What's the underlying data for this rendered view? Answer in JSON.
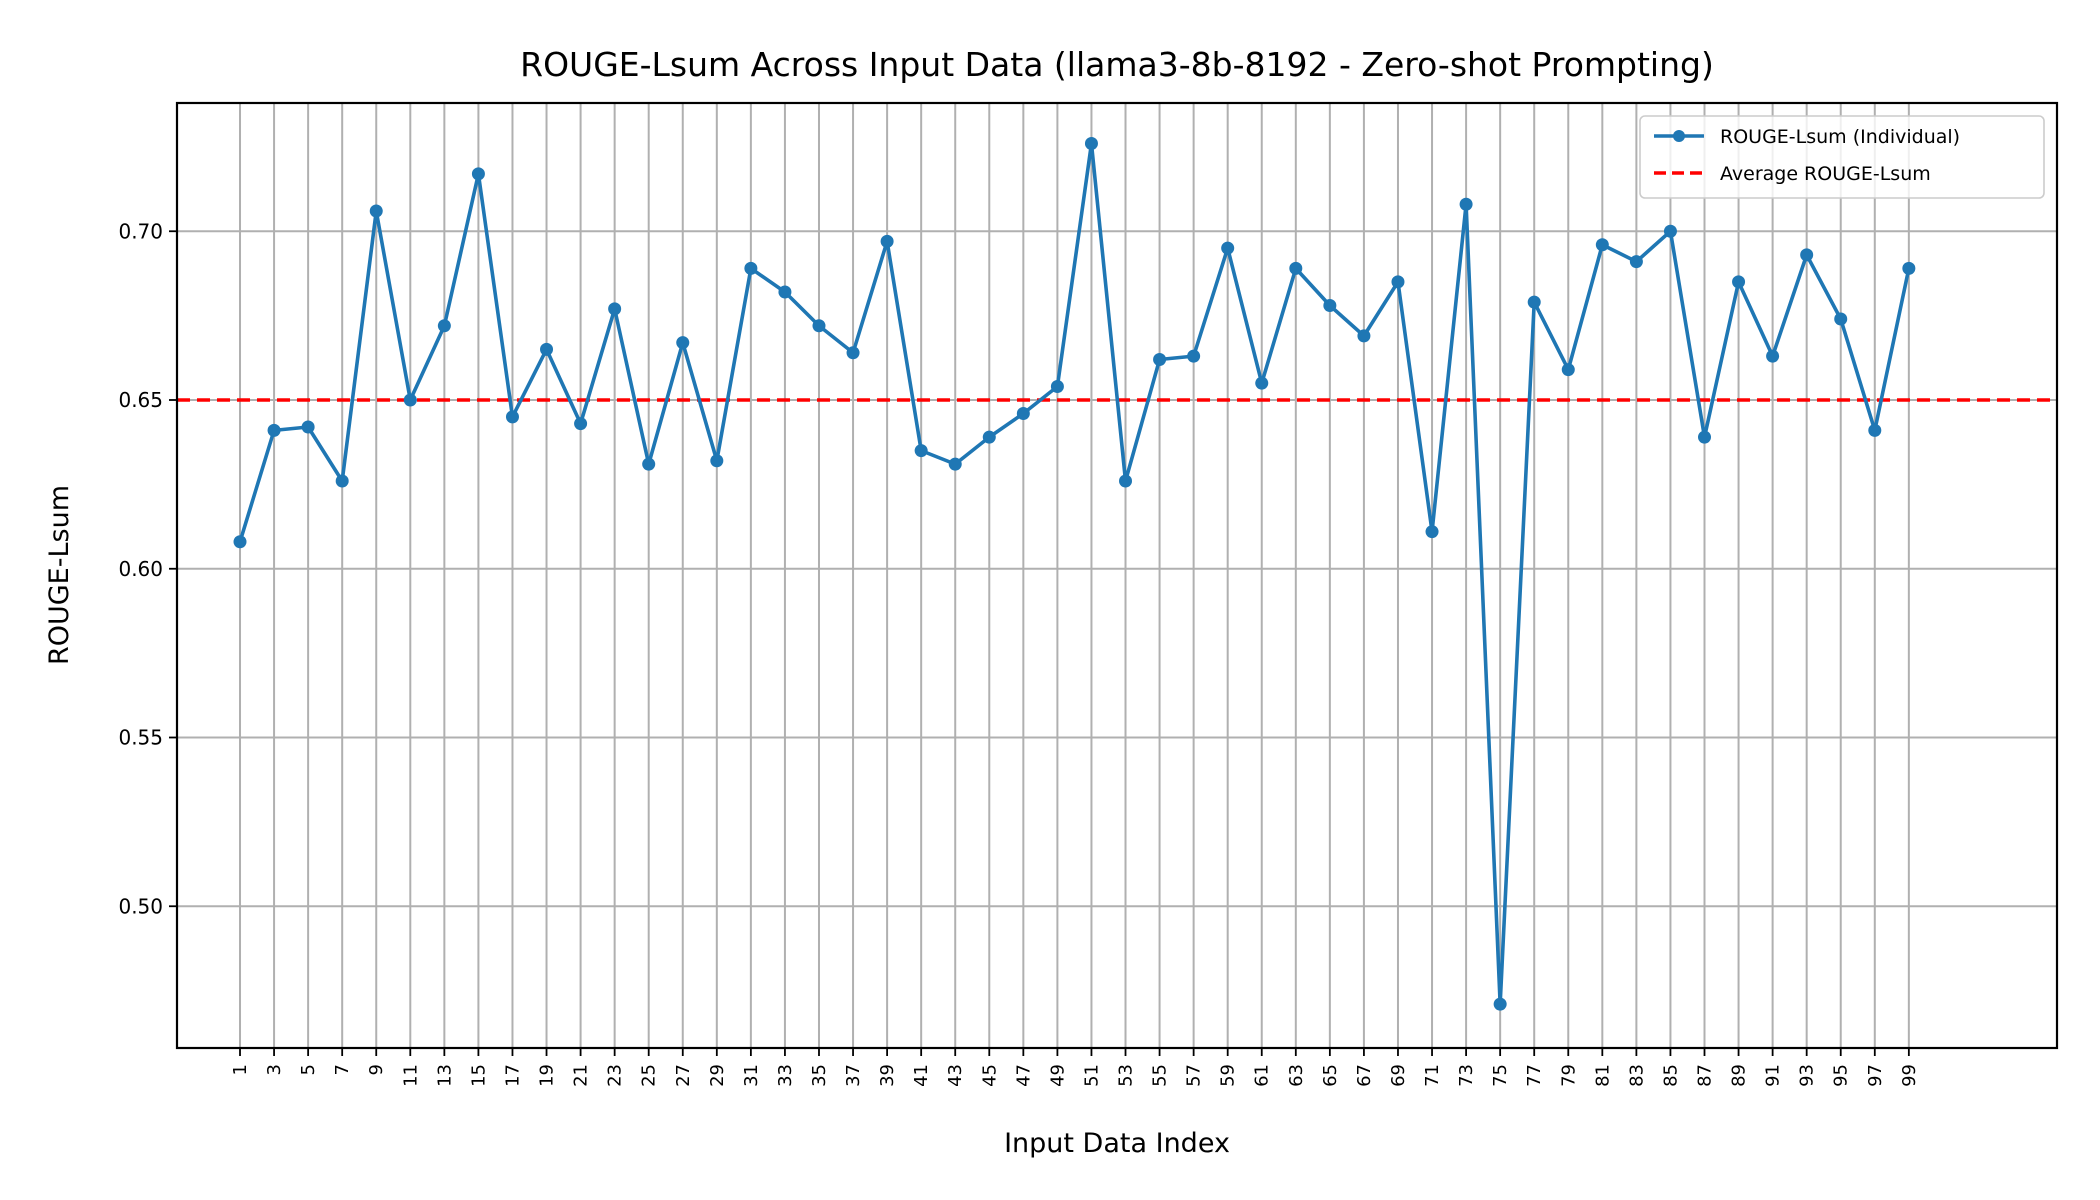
{
  "chart_data": {
    "type": "line",
    "title": "ROUGE-Lsum Across Input Data (llama3-8b-8192 - Zero-shot Prompting)",
    "xlabel": "Input Data Index",
    "ylabel": "ROUGE-Lsum",
    "xlim": [
      -2.7,
      107.7
    ],
    "ylim": [
      0.458,
      0.738
    ],
    "grid": true,
    "legend_position": "top-right",
    "x": [
      1,
      3,
      5,
      7,
      9,
      11,
      13,
      15,
      17,
      19,
      21,
      23,
      25,
      27,
      29,
      31,
      33,
      35,
      37,
      39,
      41,
      43,
      45,
      47,
      49,
      51,
      53,
      55,
      57,
      59,
      61,
      63,
      65,
      67,
      69,
      71,
      73,
      75,
      77,
      79,
      81,
      83,
      85,
      87,
      89,
      91,
      93,
      95,
      97,
      99
    ],
    "xtick_labels": [
      "1",
      "3",
      "5",
      "7",
      "9",
      "11",
      "13",
      "15",
      "17",
      "19",
      "21",
      "23",
      "25",
      "27",
      "29",
      "31",
      "33",
      "35",
      "37",
      "39",
      "41",
      "43",
      "45",
      "47",
      "49",
      "51",
      "53",
      "55",
      "57",
      "59",
      "61",
      "63",
      "65",
      "67",
      "69",
      "71",
      "73",
      "75",
      "77",
      "79",
      "81",
      "83",
      "85",
      "87",
      "89",
      "91",
      "93",
      "95",
      "97",
      "99"
    ],
    "yticks": [
      0.5,
      0.55,
      0.6,
      0.65,
      0.7
    ],
    "ytick_labels": [
      "0.50",
      "0.55",
      "0.60",
      "0.65",
      "0.70"
    ],
    "series": [
      {
        "name": "ROUGE-Lsum (Individual)",
        "color": "#1f77b4",
        "style": "line-with-markers",
        "values": [
          0.608,
          0.641,
          0.642,
          0.626,
          0.706,
          0.65,
          0.672,
          0.717,
          0.645,
          0.665,
          0.643,
          0.677,
          0.631,
          0.667,
          0.632,
          0.689,
          0.682,
          0.672,
          0.664,
          0.697,
          0.635,
          0.631,
          0.639,
          0.646,
          0.654,
          0.726,
          0.626,
          0.662,
          0.663,
          0.695,
          0.655,
          0.689,
          0.678,
          0.669,
          0.685,
          0.611,
          0.708,
          0.471,
          0.679,
          0.659,
          0.696,
          0.691,
          0.7,
          0.639,
          0.685,
          0.663,
          0.693,
          0.674,
          0.641,
          0.689
        ]
      },
      {
        "name": "Average ROUGE-Lsum",
        "color": "#ff0000",
        "style": "dashed",
        "value": 0.65
      }
    ]
  }
}
